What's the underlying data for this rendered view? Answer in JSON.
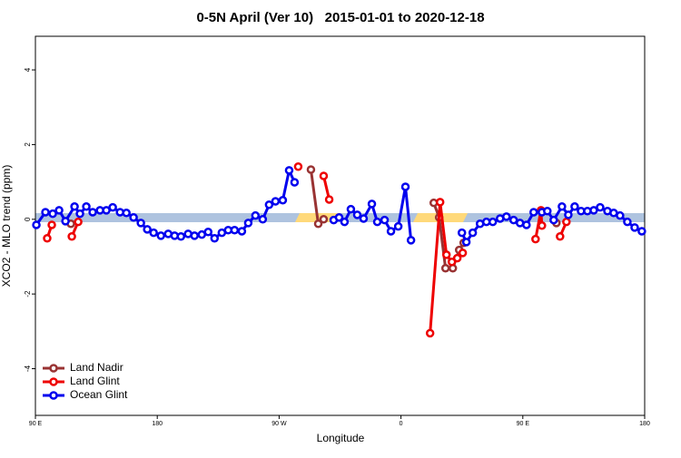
{
  "chart_data": {
    "type": "line",
    "title": "0-5N April (Ver 10)   2015-01-01 to 2020-12-18",
    "x_label": "Longitude",
    "y_label": "XCO2 - MLO trend (ppm)",
    "xlim": [
      90,
      540
    ],
    "ylim": [
      -5.25,
      4.9
    ],
    "xticks": [
      {
        "value": 90,
        "label": "90 E"
      },
      {
        "value": 180,
        "label": "180"
      },
      {
        "value": 270,
        "label": "90 W"
      },
      {
        "value": 360,
        "label": "0"
      },
      {
        "value": 450,
        "label": "90 E"
      },
      {
        "value": 540,
        "label": "180"
      }
    ],
    "yticks": [
      -4,
      -2,
      0,
      2,
      4
    ],
    "legend": "bottom-left",
    "series": [
      {
        "name": "Land Nadir",
        "color": "#993333",
        "x": [
          116.2,
          null,
          293.5,
          298.9,
          302.9,
          null,
          384.2,
          388.2,
          392.9,
          398.3,
          403.0,
          406.3,
          null,
          474.8
        ],
        "values": [
          -0.12,
          null,
          1.33,
          -0.12,
          0.0,
          null,
          0.44,
          0.05,
          -1.31,
          -1.31,
          -0.82,
          -0.63,
          null,
          -0.1
        ]
      },
      {
        "name": "Land Glint",
        "color": "#ee0000",
        "x": [
          98.7,
          102.1,
          null,
          116.9,
          121.6,
          null,
          284.1,
          null,
          302.9,
          307.0,
          null,
          381.5,
          388.9,
          393.6,
          397.6,
          401.6,
          405.6,
          null,
          459.4,
          463.4,
          464.1,
          null,
          477.5,
          482.2
        ],
        "values": [
          -0.51,
          -0.15,
          null,
          -0.46,
          -0.07,
          null,
          1.41,
          null,
          1.16,
          0.53,
          null,
          -3.05,
          0.46,
          -0.95,
          -1.14,
          -1.04,
          -0.9,
          null,
          -0.53,
          0.24,
          -0.17,
          null,
          -0.46,
          -0.07
        ]
      },
      {
        "name": "Ocean Glint",
        "color": "#0000ee",
        "x": [
          90.7,
          97.4,
          102.8,
          107.5,
          112.2,
          118.9,
          122.9,
          127.6,
          132.3,
          137.7,
          142.4,
          147.1,
          152.5,
          157.2,
          162.5,
          167.9,
          172.6,
          177.3,
          182.7,
          188.1,
          192.8,
          197.5,
          202.8,
          207.5,
          212.9,
          217.6,
          222.3,
          227.7,
          232.4,
          237.1,
          242.5,
          247.2,
          252.5,
          257.9,
          262.6,
          267.3,
          272.7,
          277.4,
          281.4,
          null,
          310.3,
          314.3,
          318.3,
          323.0,
          327.7,
          332.4,
          338.5,
          342.5,
          347.9,
          352.6,
          358.0,
          363.3,
          367.4,
          null,
          405.0,
          408.3,
          413.0,
          418.4,
          423.1,
          427.8,
          433.2,
          437.9,
          443.2,
          447.9,
          452.7,
          458.0,
          464.1,
          468.1,
          472.8,
          478.9,
          483.6,
          488.3,
          493.0,
          497.7,
          502.4,
          507.1,
          512.5,
          517.1,
          521.8,
          527.2,
          532.6,
          537.9
        ],
        "values": [
          -0.15,
          0.19,
          0.15,
          0.24,
          -0.05,
          0.34,
          0.15,
          0.34,
          0.19,
          0.24,
          0.24,
          0.32,
          0.19,
          0.17,
          0.05,
          -0.1,
          -0.27,
          -0.36,
          -0.44,
          -0.39,
          -0.44,
          -0.46,
          -0.39,
          -0.44,
          -0.41,
          -0.34,
          -0.51,
          -0.36,
          -0.29,
          -0.29,
          -0.32,
          -0.1,
          0.1,
          0.0,
          0.39,
          0.48,
          0.51,
          1.31,
          0.99,
          null,
          -0.02,
          0.05,
          -0.07,
          0.27,
          0.12,
          0.02,
          0.41,
          -0.07,
          -0.02,
          -0.32,
          -0.19,
          0.87,
          -0.56,
          null,
          -0.36,
          -0.61,
          -0.36,
          -0.12,
          -0.07,
          -0.07,
          0.02,
          0.07,
          -0.02,
          -0.1,
          -0.15,
          0.19,
          0.19,
          0.22,
          -0.02,
          0.34,
          0.12,
          0.34,
          0.22,
          0.22,
          0.24,
          0.32,
          0.22,
          0.17,
          0.1,
          -0.07,
          -0.22,
          -0.32
        ]
      }
    ]
  }
}
